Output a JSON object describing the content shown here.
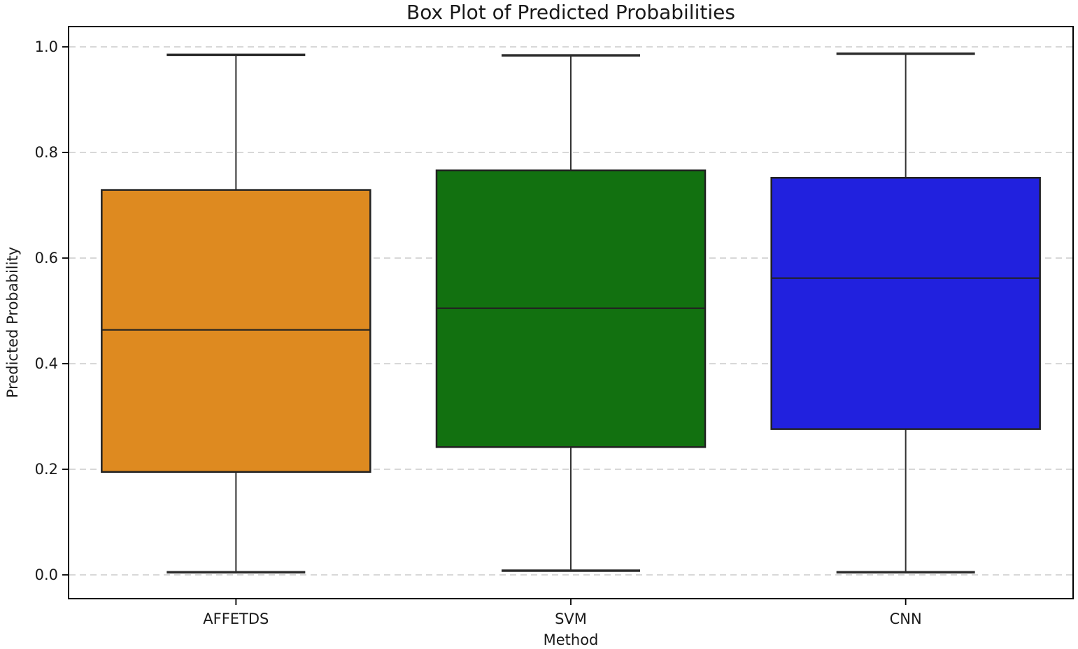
{
  "figure": {
    "background_color": "#ffffff",
    "frame_color": "#000000",
    "grid_color": "#cbcbcb",
    "box_edge_color": "#222222",
    "whisker_color": "#333333"
  },
  "chart_data": {
    "type": "box",
    "title": "Box Plot of Predicted Probabilities",
    "xlabel": "Method",
    "ylabel": "Predicted Probability",
    "categories": [
      "AFFETDS",
      "SVM",
      "CNN"
    ],
    "y_tick_labels": [
      "0.0",
      "0.2",
      "0.4",
      "0.6",
      "0.8",
      "1.0"
    ],
    "y_tick_values": [
      0.0,
      0.2,
      0.4,
      0.6,
      0.8,
      1.0
    ],
    "ylim": [
      0.0,
      1.0
    ],
    "grid": {
      "axis": "y",
      "style": "dashed",
      "on": true
    },
    "legend": "none",
    "series": [
      {
        "name": "AFFETDS",
        "color": "#de8a20",
        "whisker_low": 0.005,
        "q1": 0.195,
        "median": 0.464,
        "q3": 0.729,
        "whisker_high": 0.985
      },
      {
        "name": "SVM",
        "color": "#127110",
        "whisker_low": 0.008,
        "q1": 0.242,
        "median": 0.505,
        "q3": 0.766,
        "whisker_high": 0.984
      },
      {
        "name": "CNN",
        "color": "#2121de",
        "whisker_low": 0.005,
        "q1": 0.276,
        "median": 0.562,
        "q3": 0.752,
        "whisker_high": 0.987
      }
    ]
  }
}
